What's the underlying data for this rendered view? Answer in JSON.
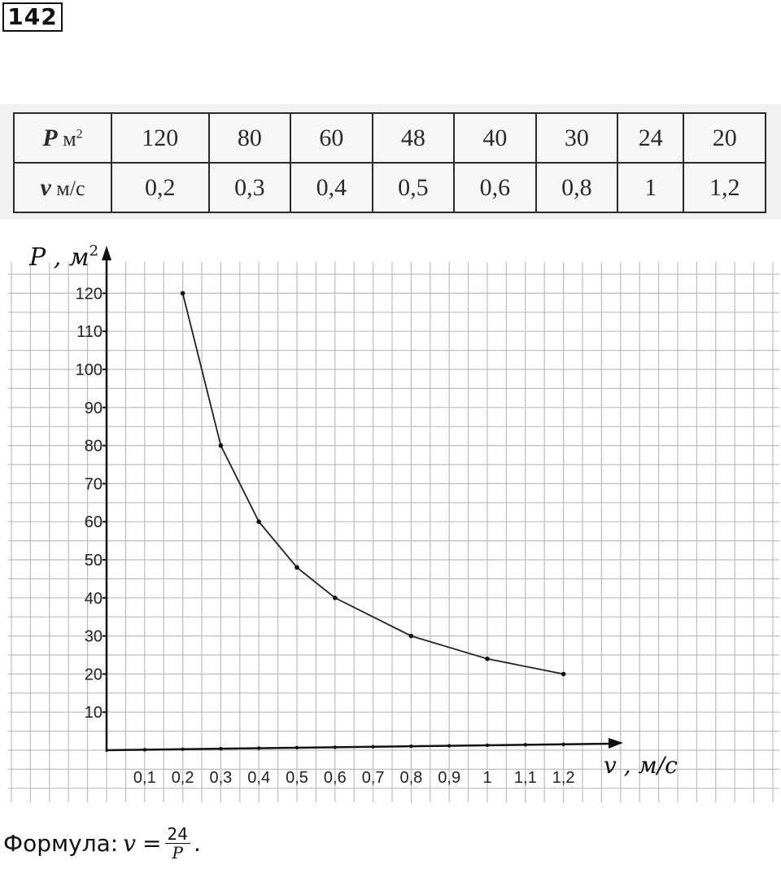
{
  "task": {
    "number": "142"
  },
  "table": {
    "row_p": {
      "symbol": "P",
      "unit": "м",
      "unit_sup": "2",
      "values": [
        "120",
        "80",
        "60",
        "48",
        "40",
        "30",
        "24",
        "20"
      ]
    },
    "row_v": {
      "symbol": "v",
      "unit": "м/с",
      "values": [
        "0,2",
        "0,3",
        "0,4",
        "0,5",
        "0,6",
        "0,8",
        "1",
        "1,2"
      ]
    }
  },
  "chart_data": {
    "type": "line",
    "title": "",
    "ylabel": "P , м",
    "ylabel_sup": "2",
    "xlabel": "v , м/с",
    "x_ticks": [
      "0,1",
      "0,2",
      "0,3",
      "0,4",
      "0,5",
      "0,6",
      "0,7",
      "0,8",
      "0,9",
      "1",
      "1,1",
      "1,2"
    ],
    "y_ticks": [
      "10",
      "20",
      "30",
      "40",
      "50",
      "60",
      "70",
      "80",
      "90",
      "100",
      "110",
      "120"
    ],
    "xlim": [
      0,
      1.3
    ],
    "ylim": [
      0,
      130
    ],
    "grid": true,
    "series": [
      {
        "x": [
          0.2,
          0.3,
          0.4,
          0.5,
          0.6,
          0.8,
          1.0,
          1.2
        ],
        "y": [
          120,
          80,
          60,
          48,
          40,
          30,
          24,
          20
        ]
      }
    ]
  },
  "formula": {
    "prefix": "Формула:",
    "var": "v",
    "equals": "=",
    "numerator": "24",
    "denominator": "P",
    "suffix": "."
  }
}
